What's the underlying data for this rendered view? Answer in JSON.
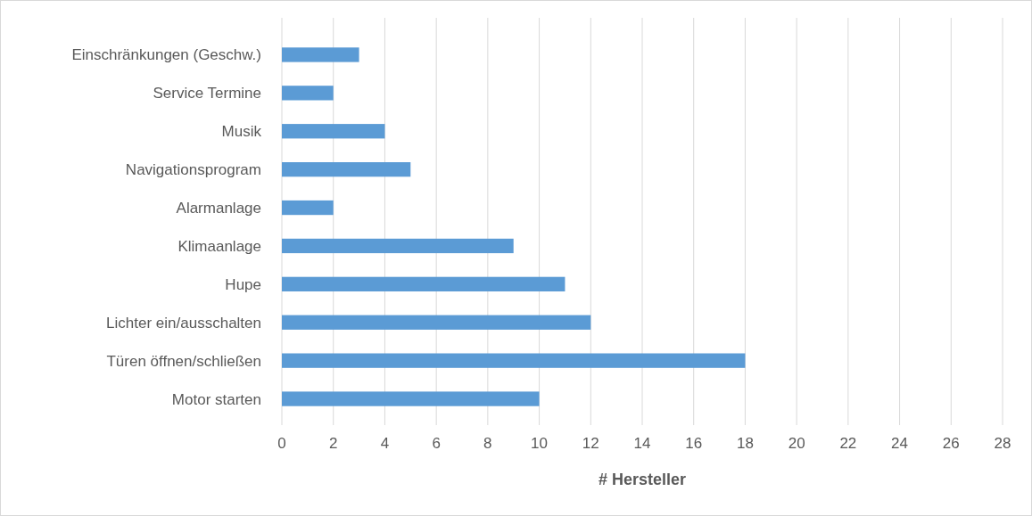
{
  "chart_data": {
    "type": "bar",
    "orientation": "horizontal",
    "xlabel": "# Hersteller",
    "categories": [
      "Einschränkungen (Geschw.)",
      "Service Termine",
      "Musik",
      "Navigationsprogram",
      "Alarmanlage",
      "Klimaanlage",
      "Hupe",
      "Lichter ein/ausschalten",
      "Türen öffnen/schließen",
      "Motor starten"
    ],
    "values": [
      3,
      2,
      4,
      5,
      2,
      9,
      11,
      12,
      18,
      10
    ],
    "color": "#5b9bd5",
    "xlim": [
      0,
      28
    ],
    "xticks": [
      0,
      2,
      4,
      6,
      8,
      10,
      12,
      14,
      16,
      18,
      20,
      22,
      24,
      26,
      28
    ],
    "grid": "x"
  }
}
